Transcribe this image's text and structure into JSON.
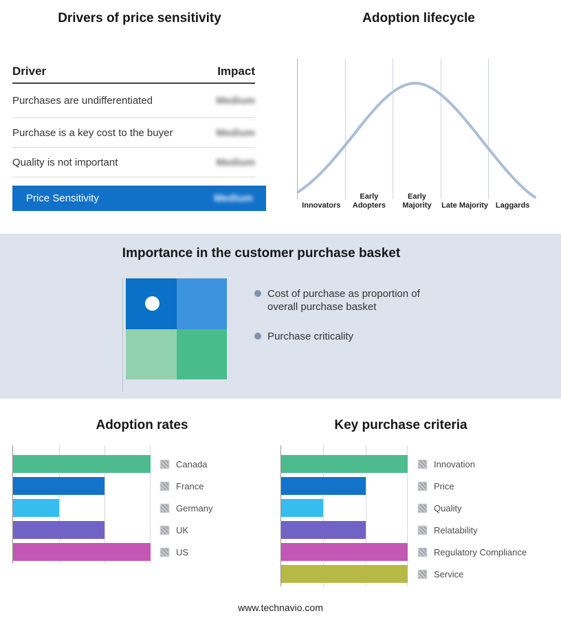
{
  "drivers_panel": {
    "title": "Drivers of price sensitivity",
    "columns": {
      "driver": "Driver",
      "impact": "Impact"
    },
    "rows": [
      {
        "driver": "Purchases are undifferentiated",
        "impact": "Medium"
      },
      {
        "driver": "Purchase is a key cost to the buyer",
        "impact": "Medium"
      },
      {
        "driver": "Quality is not important",
        "impact": "Medium"
      }
    ],
    "highlight_row": {
      "label": "Price Sensitivity",
      "impact": "Medium",
      "bg_color": "#1171c9"
    }
  },
  "basket_panel": {
    "title": "Importance in the customer purchase basket",
    "band_color": "#dce3ed",
    "bullets": [
      "Cost of purchase as proportion of overall purchase basket",
      "Purchase criticality"
    ],
    "quadrant_colors": {
      "top_left": "#0b70c7",
      "top_right": "#3d92de",
      "bottom_left": "#90d2ae",
      "bottom_right": "#4abc8c"
    }
  },
  "footer": {
    "url": "www.technavio.com"
  },
  "chart_data": [
    {
      "type": "bar",
      "orientation": "horizontal",
      "title": "Adoption rates",
      "categories": [
        "Canada",
        "France",
        "Germany",
        "UK",
        "US"
      ],
      "values": [
        3,
        2,
        1,
        2,
        3
      ],
      "colors": [
        "#4cbc8e",
        "#1273cb",
        "#35bdf0",
        "#7163c3",
        "#c457b6"
      ],
      "xlim": [
        0,
        3
      ],
      "grid": true,
      "legend_position": "right"
    },
    {
      "type": "bar",
      "orientation": "horizontal",
      "title": "Key purchase criteria",
      "categories": [
        "Innovation",
        "Price",
        "Quality",
        "Relatability",
        "Regulatory Compliance",
        "Service"
      ],
      "values": [
        3,
        2,
        1,
        2,
        3,
        3
      ],
      "colors": [
        "#4cbc8e",
        "#1273cb",
        "#35bdf0",
        "#7163c3",
        "#c457b6",
        "#b8b944"
      ],
      "xlim": [
        0,
        3
      ],
      "grid": true,
      "legend_position": "right"
    },
    {
      "type": "line",
      "title": "Adoption lifecycle",
      "categories": [
        "Innovators",
        "Early Adopters",
        "Early Majority",
        "Late Majority",
        "Laggards"
      ],
      "color": "#abbdd6",
      "x": [
        0,
        1,
        2,
        3,
        4
      ],
      "y": [
        0.05,
        0.55,
        1.0,
        0.55,
        0.05
      ]
    }
  ]
}
